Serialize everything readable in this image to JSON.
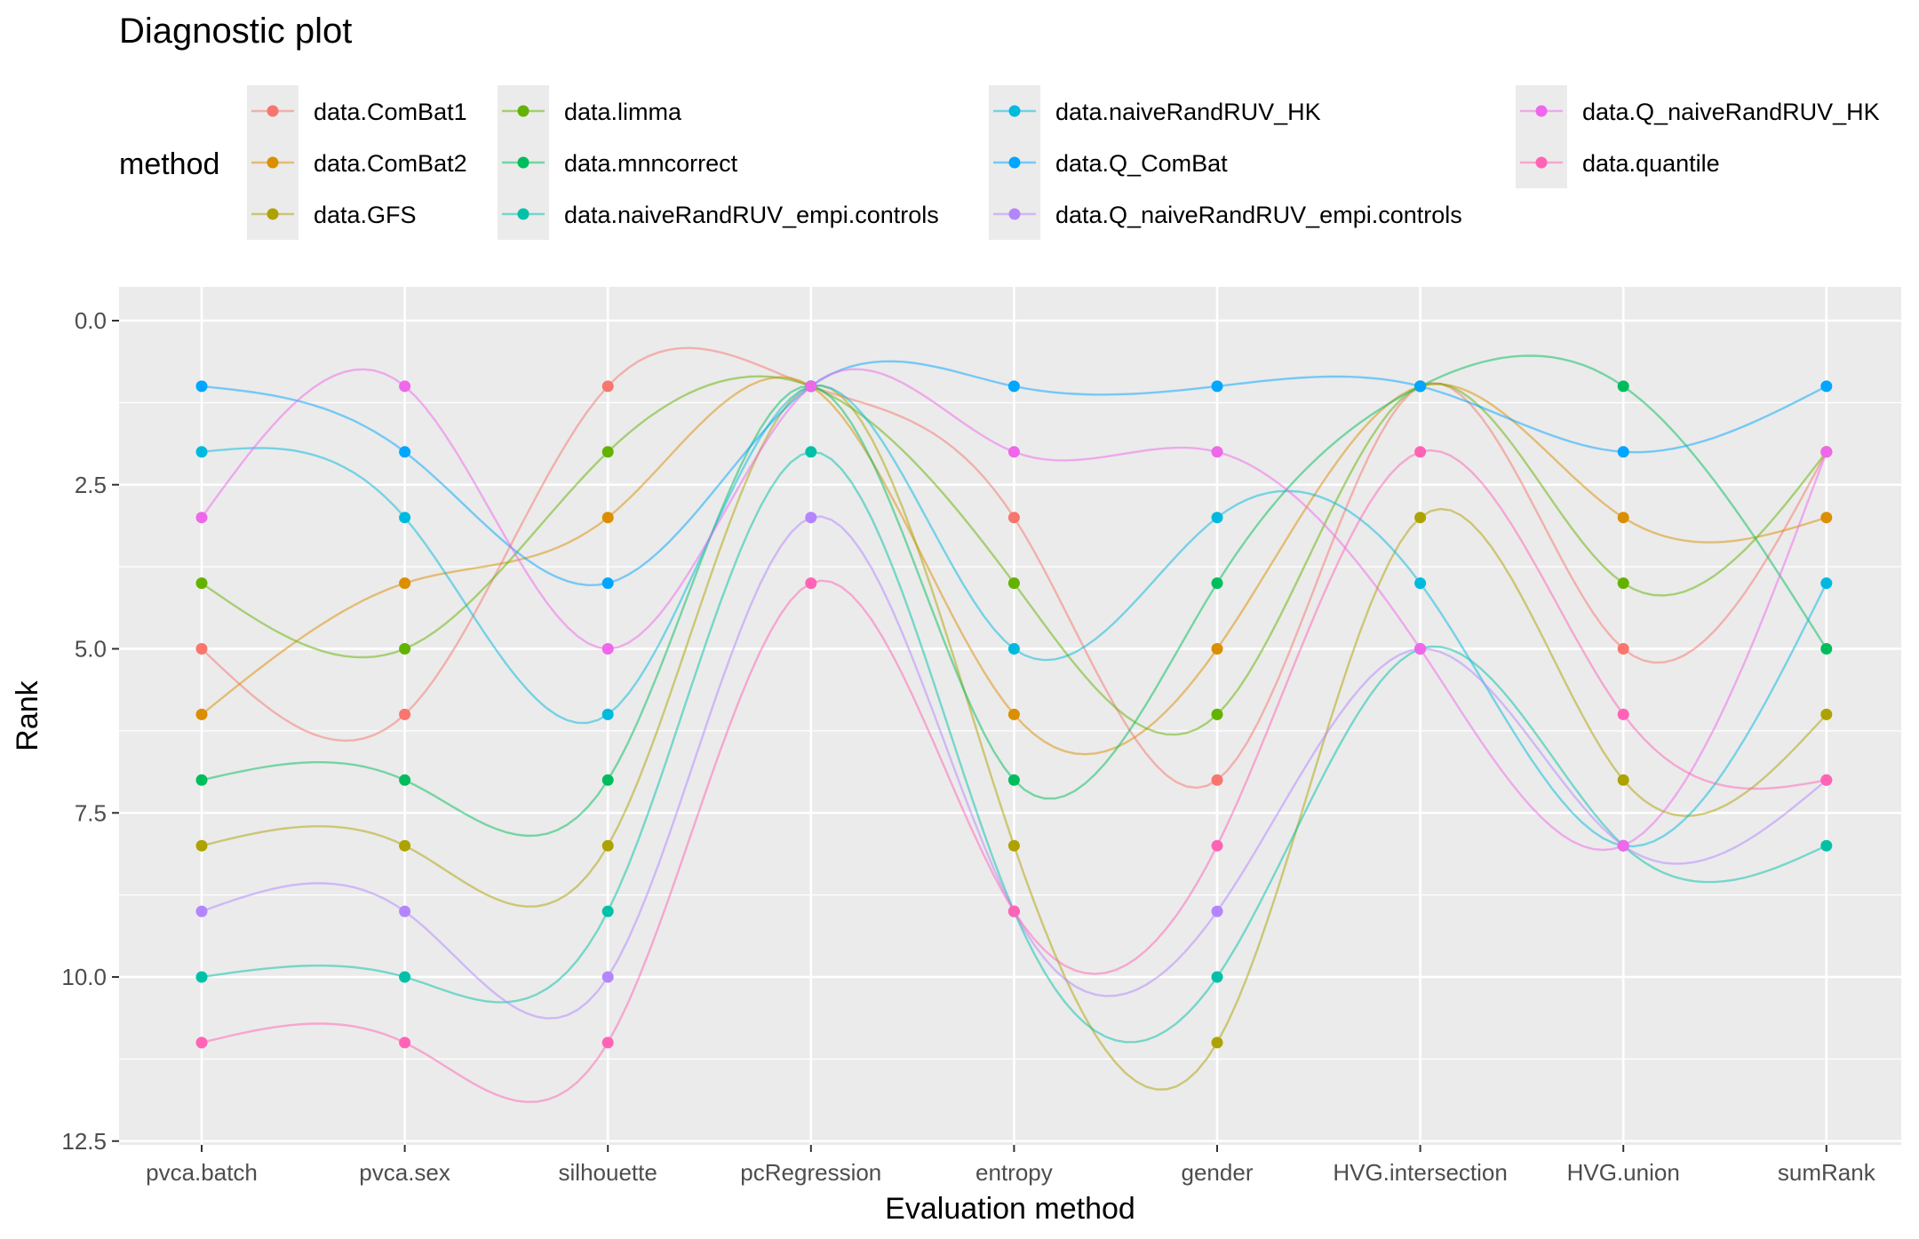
{
  "chart_data": {
    "type": "line",
    "title": "Diagnostic plot",
    "xlabel": "Evaluation method",
    "ylabel": "Rank",
    "legend_title": "method",
    "legend_position": "top",
    "y_reversed": true,
    "ylim": [
      0,
      12.5
    ],
    "y_ticks": [
      "0.0",
      "2.5",
      "5.0",
      "7.5",
      "10.0",
      "12.5"
    ],
    "grid": true,
    "categories": [
      "pvca.batch",
      "pvca.sex",
      "silhouette",
      "pcRegression",
      "entropy",
      "gender",
      "HVG.intersection",
      "HVG.union",
      "sumRank"
    ],
    "series": [
      {
        "name": "data.ComBat1",
        "color": "#F8766D",
        "values": [
          5,
          6,
          1,
          1,
          3,
          7,
          1,
          5,
          2
        ]
      },
      {
        "name": "data.ComBat2",
        "color": "#DB8E00",
        "values": [
          6,
          4,
          3,
          1,
          6,
          5,
          1,
          3,
          3
        ]
      },
      {
        "name": "data.GFS",
        "color": "#AEA200",
        "values": [
          8,
          8,
          8,
          1,
          8,
          11,
          3,
          7,
          6
        ]
      },
      {
        "name": "data.limma",
        "color": "#64B200",
        "values": [
          4,
          5,
          2,
          1,
          4,
          6,
          1,
          4,
          2
        ]
      },
      {
        "name": "data.mnncorrect",
        "color": "#00BD5C",
        "values": [
          7,
          7,
          7,
          1,
          7,
          4,
          1,
          1,
          5
        ]
      },
      {
        "name": "data.naiveRandRUV_empi.controls",
        "color": "#00C1A7",
        "values": [
          10,
          10,
          9,
          2,
          9,
          10,
          5,
          8,
          8
        ]
      },
      {
        "name": "data.naiveRandRUV_HK",
        "color": "#00BADE",
        "values": [
          2,
          3,
          6,
          1,
          5,
          3,
          4,
          8,
          4
        ]
      },
      {
        "name": "data.Q_ComBat",
        "color": "#00A6FF",
        "values": [
          1,
          2,
          4,
          1,
          1,
          1,
          1,
          2,
          1
        ]
      },
      {
        "name": "data.Q_naiveRandRUV_empi.controls",
        "color": "#B385FF",
        "values": [
          9,
          9,
          10,
          3,
          9,
          9,
          5,
          8,
          7
        ]
      },
      {
        "name": "data.Q_naiveRandRUV_HK",
        "color": "#EF67EB",
        "values": [
          3,
          1,
          5,
          1,
          2,
          2,
          5,
          8,
          2
        ]
      },
      {
        "name": "data.quantile",
        "color": "#FF63B6",
        "values": [
          11,
          11,
          11,
          4,
          9,
          8,
          2,
          6,
          7
        ]
      }
    ]
  }
}
